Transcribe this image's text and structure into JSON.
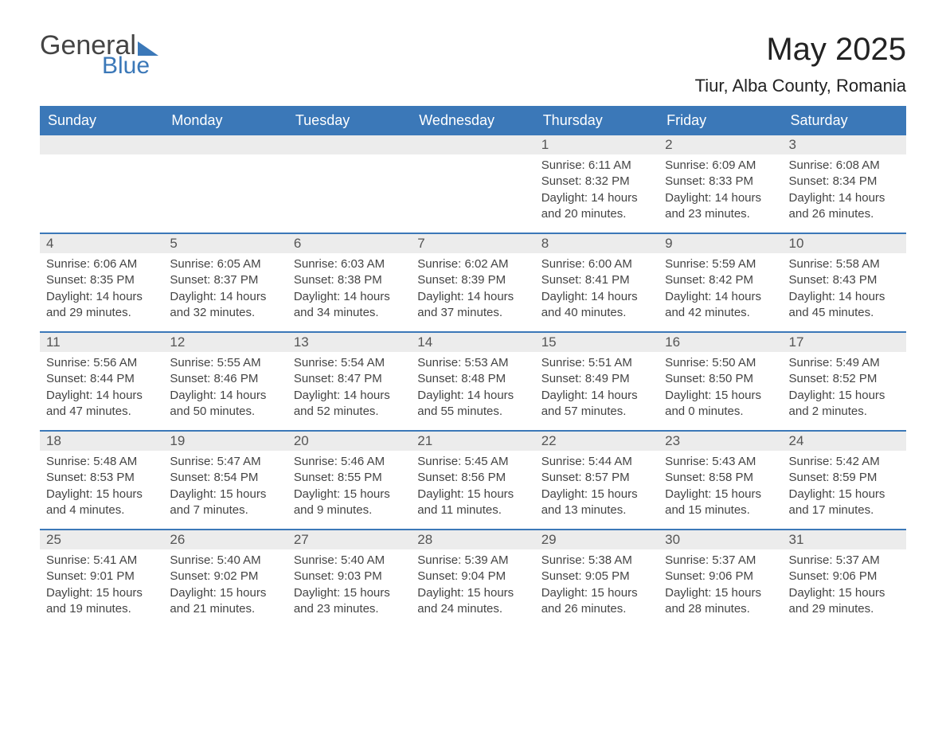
{
  "logo": {
    "word1": "General",
    "word2": "Blue"
  },
  "title": "May 2025",
  "location": "Tiur, Alba County, Romania",
  "colors": {
    "header_bg": "#3b78b8",
    "header_text": "#ffffff",
    "divider": "#3b78b8",
    "daynum_bg": "#ececec",
    "page_bg": "#ffffff",
    "text": "#444444",
    "logo_gray": "#444444",
    "logo_blue": "#3b78b8"
  },
  "typography": {
    "title_fontsize": 40,
    "location_fontsize": 22,
    "weekday_fontsize": 18,
    "daynum_fontsize": 17,
    "body_fontsize": 15
  },
  "weekdays": [
    "Sunday",
    "Monday",
    "Tuesday",
    "Wednesday",
    "Thursday",
    "Friday",
    "Saturday"
  ],
  "weeks": [
    [
      null,
      null,
      null,
      null,
      {
        "n": "1",
        "sr": "Sunrise: 6:11 AM",
        "ss": "Sunset: 8:32 PM",
        "dl": "Daylight: 14 hours and 20 minutes."
      },
      {
        "n": "2",
        "sr": "Sunrise: 6:09 AM",
        "ss": "Sunset: 8:33 PM",
        "dl": "Daylight: 14 hours and 23 minutes."
      },
      {
        "n": "3",
        "sr": "Sunrise: 6:08 AM",
        "ss": "Sunset: 8:34 PM",
        "dl": "Daylight: 14 hours and 26 minutes."
      }
    ],
    [
      {
        "n": "4",
        "sr": "Sunrise: 6:06 AM",
        "ss": "Sunset: 8:35 PM",
        "dl": "Daylight: 14 hours and 29 minutes."
      },
      {
        "n": "5",
        "sr": "Sunrise: 6:05 AM",
        "ss": "Sunset: 8:37 PM",
        "dl": "Daylight: 14 hours and 32 minutes."
      },
      {
        "n": "6",
        "sr": "Sunrise: 6:03 AM",
        "ss": "Sunset: 8:38 PM",
        "dl": "Daylight: 14 hours and 34 minutes."
      },
      {
        "n": "7",
        "sr": "Sunrise: 6:02 AM",
        "ss": "Sunset: 8:39 PM",
        "dl": "Daylight: 14 hours and 37 minutes."
      },
      {
        "n": "8",
        "sr": "Sunrise: 6:00 AM",
        "ss": "Sunset: 8:41 PM",
        "dl": "Daylight: 14 hours and 40 minutes."
      },
      {
        "n": "9",
        "sr": "Sunrise: 5:59 AM",
        "ss": "Sunset: 8:42 PM",
        "dl": "Daylight: 14 hours and 42 minutes."
      },
      {
        "n": "10",
        "sr": "Sunrise: 5:58 AM",
        "ss": "Sunset: 8:43 PM",
        "dl": "Daylight: 14 hours and 45 minutes."
      }
    ],
    [
      {
        "n": "11",
        "sr": "Sunrise: 5:56 AM",
        "ss": "Sunset: 8:44 PM",
        "dl": "Daylight: 14 hours and 47 minutes."
      },
      {
        "n": "12",
        "sr": "Sunrise: 5:55 AM",
        "ss": "Sunset: 8:46 PM",
        "dl": "Daylight: 14 hours and 50 minutes."
      },
      {
        "n": "13",
        "sr": "Sunrise: 5:54 AM",
        "ss": "Sunset: 8:47 PM",
        "dl": "Daylight: 14 hours and 52 minutes."
      },
      {
        "n": "14",
        "sr": "Sunrise: 5:53 AM",
        "ss": "Sunset: 8:48 PM",
        "dl": "Daylight: 14 hours and 55 minutes."
      },
      {
        "n": "15",
        "sr": "Sunrise: 5:51 AM",
        "ss": "Sunset: 8:49 PM",
        "dl": "Daylight: 14 hours and 57 minutes."
      },
      {
        "n": "16",
        "sr": "Sunrise: 5:50 AM",
        "ss": "Sunset: 8:50 PM",
        "dl": "Daylight: 15 hours and 0 minutes."
      },
      {
        "n": "17",
        "sr": "Sunrise: 5:49 AM",
        "ss": "Sunset: 8:52 PM",
        "dl": "Daylight: 15 hours and 2 minutes."
      }
    ],
    [
      {
        "n": "18",
        "sr": "Sunrise: 5:48 AM",
        "ss": "Sunset: 8:53 PM",
        "dl": "Daylight: 15 hours and 4 minutes."
      },
      {
        "n": "19",
        "sr": "Sunrise: 5:47 AM",
        "ss": "Sunset: 8:54 PM",
        "dl": "Daylight: 15 hours and 7 minutes."
      },
      {
        "n": "20",
        "sr": "Sunrise: 5:46 AM",
        "ss": "Sunset: 8:55 PM",
        "dl": "Daylight: 15 hours and 9 minutes."
      },
      {
        "n": "21",
        "sr": "Sunrise: 5:45 AM",
        "ss": "Sunset: 8:56 PM",
        "dl": "Daylight: 15 hours and 11 minutes."
      },
      {
        "n": "22",
        "sr": "Sunrise: 5:44 AM",
        "ss": "Sunset: 8:57 PM",
        "dl": "Daylight: 15 hours and 13 minutes."
      },
      {
        "n": "23",
        "sr": "Sunrise: 5:43 AM",
        "ss": "Sunset: 8:58 PM",
        "dl": "Daylight: 15 hours and 15 minutes."
      },
      {
        "n": "24",
        "sr": "Sunrise: 5:42 AM",
        "ss": "Sunset: 8:59 PM",
        "dl": "Daylight: 15 hours and 17 minutes."
      }
    ],
    [
      {
        "n": "25",
        "sr": "Sunrise: 5:41 AM",
        "ss": "Sunset: 9:01 PM",
        "dl": "Daylight: 15 hours and 19 minutes."
      },
      {
        "n": "26",
        "sr": "Sunrise: 5:40 AM",
        "ss": "Sunset: 9:02 PM",
        "dl": "Daylight: 15 hours and 21 minutes."
      },
      {
        "n": "27",
        "sr": "Sunrise: 5:40 AM",
        "ss": "Sunset: 9:03 PM",
        "dl": "Daylight: 15 hours and 23 minutes."
      },
      {
        "n": "28",
        "sr": "Sunrise: 5:39 AM",
        "ss": "Sunset: 9:04 PM",
        "dl": "Daylight: 15 hours and 24 minutes."
      },
      {
        "n": "29",
        "sr": "Sunrise: 5:38 AM",
        "ss": "Sunset: 9:05 PM",
        "dl": "Daylight: 15 hours and 26 minutes."
      },
      {
        "n": "30",
        "sr": "Sunrise: 5:37 AM",
        "ss": "Sunset: 9:06 PM",
        "dl": "Daylight: 15 hours and 28 minutes."
      },
      {
        "n": "31",
        "sr": "Sunrise: 5:37 AM",
        "ss": "Sunset: 9:06 PM",
        "dl": "Daylight: 15 hours and 29 minutes."
      }
    ]
  ]
}
